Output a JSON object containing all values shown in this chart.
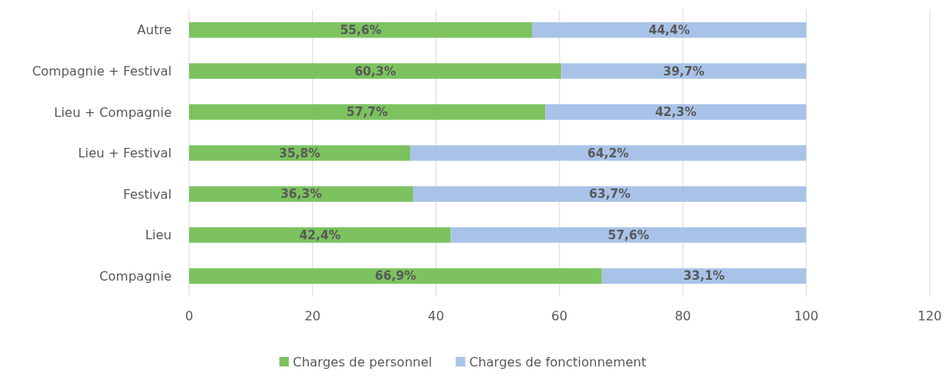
{
  "chart_data": {
    "type": "bar",
    "orientation": "horizontal",
    "stacked": true,
    "categories": [
      "Autre",
      "Compagnie + Festival",
      "Lieu + Compagnie",
      "Lieu + Festival",
      "Festival",
      "Lieu",
      "Compagnie"
    ],
    "series": [
      {
        "name": "Charges de personnel",
        "color": "#7cc35f",
        "values": [
          55.6,
          60.3,
          57.7,
          35.8,
          36.3,
          42.4,
          66.9
        ],
        "value_labels": [
          "55,6%",
          "60,3%",
          "57,7%",
          "35,8%",
          "36,3%",
          "42,4%",
          "66,9%"
        ]
      },
      {
        "name": "Charges de fonctionnement",
        "color": "#a9c3e8",
        "values": [
          44.4,
          39.7,
          42.3,
          64.2,
          63.7,
          57.6,
          33.1
        ],
        "value_labels": [
          "44,4%",
          "39,7%",
          "42,3%",
          "64,2%",
          "63,7%",
          "57,6%",
          "33,1%"
        ]
      }
    ],
    "xlim": [
      0,
      120
    ],
    "xticks": [
      0,
      20,
      40,
      60,
      80,
      100,
      120
    ],
    "grid": "x",
    "legend": "bottom"
  }
}
